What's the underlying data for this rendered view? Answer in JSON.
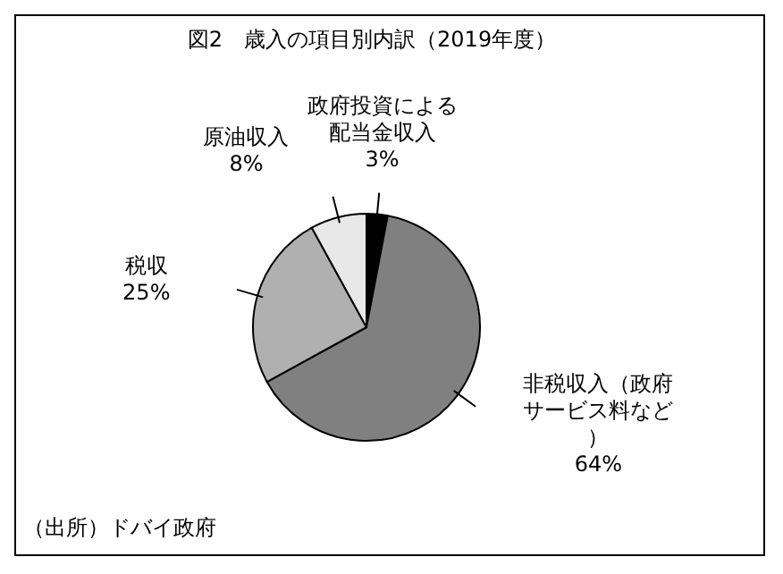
{
  "chart_data": {
    "type": "pie",
    "title": "図2　歳入の項目別内訳（2019年度）",
    "categories": [
      "政府投資による配当金収入",
      "非税収入（政府サービス料など）",
      "税収",
      "原油収入"
    ],
    "values": [
      3,
      64,
      25,
      8
    ],
    "value_labels": [
      "3%",
      "64%",
      "25%",
      "8%"
    ],
    "colors": [
      "#000000",
      "#808080",
      "#b0b0b0",
      "#e8e8e8"
    ],
    "annotations": [
      "（出所）ドバイ政府"
    ]
  }
}
